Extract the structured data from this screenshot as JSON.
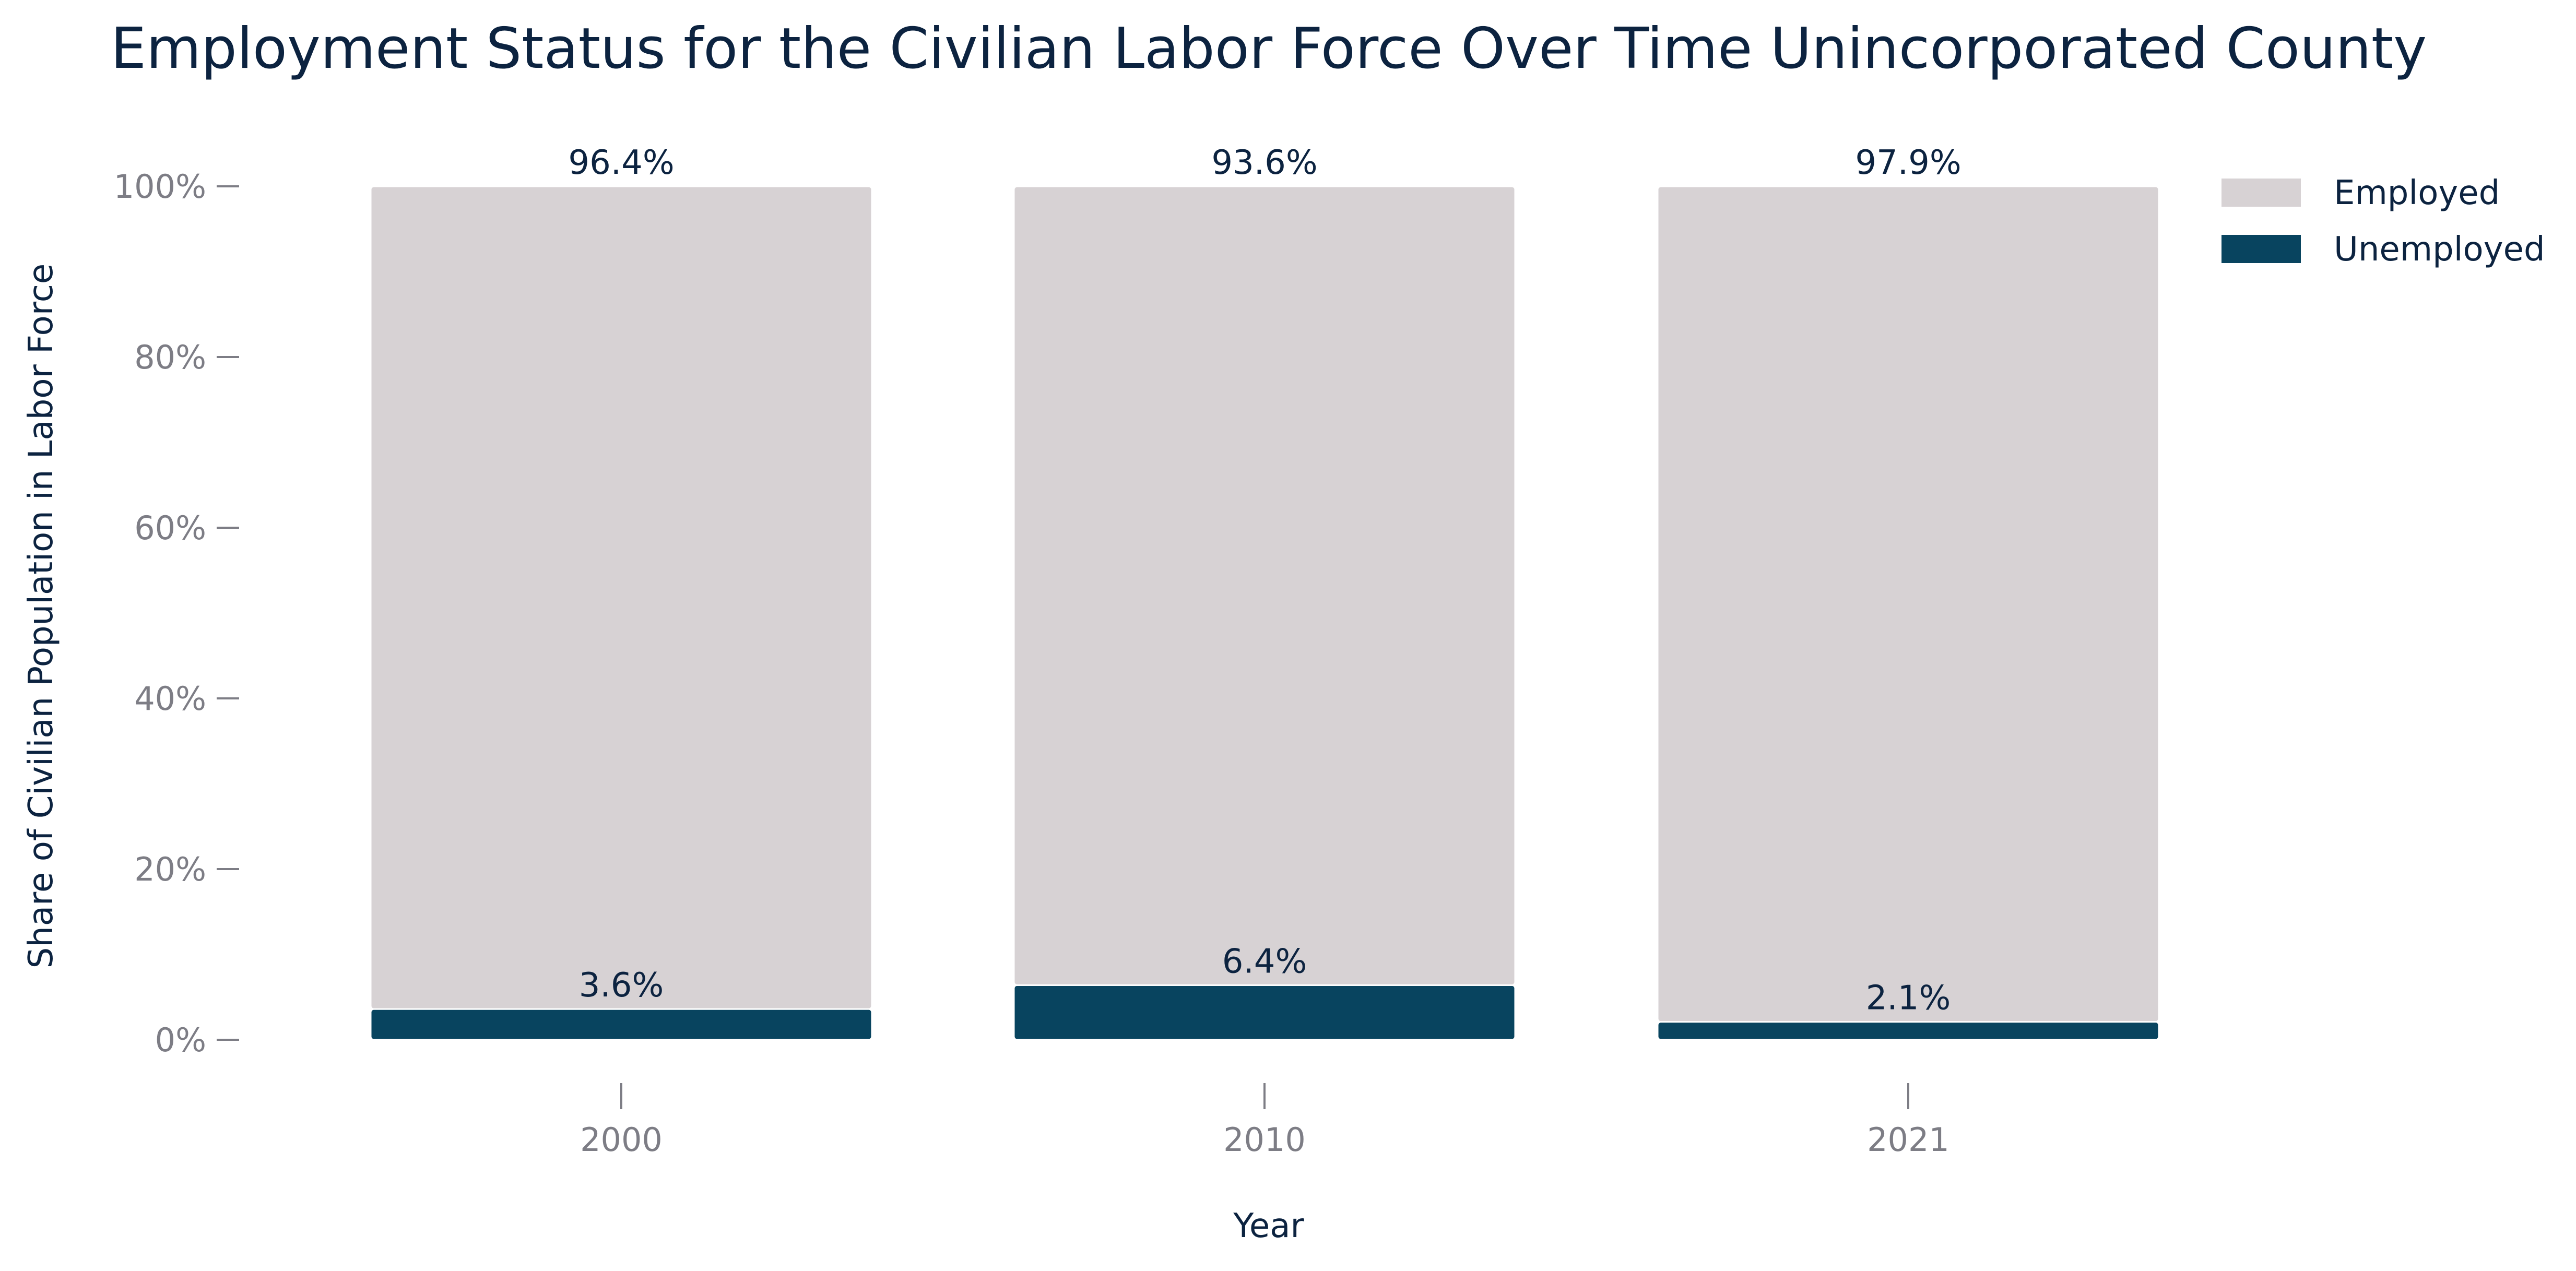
{
  "chart_data": {
    "type": "bar",
    "stacked": true,
    "title": "Employment Status for the Civilian Labor Force Over Time Unincorporated County",
    "xlabel": "Year",
    "ylabel": "Share of Civilian Population in Labor Force",
    "categories": [
      "2000",
      "2010",
      "2021"
    ],
    "ylim": [
      0,
      100
    ],
    "yticks": [
      "0%",
      "20%",
      "40%",
      "60%",
      "80%",
      "100%"
    ],
    "ytick_values": [
      0,
      20,
      40,
      60,
      80,
      100
    ],
    "series": [
      {
        "name": "Unemployed",
        "values": [
          3.6,
          6.4,
          2.1
        ],
        "labels": [
          "3.6%",
          "6.4%",
          "2.1%"
        ],
        "color": "#08445f"
      },
      {
        "name": "Employed",
        "values": [
          96.4,
          93.6,
          97.9
        ],
        "labels": [
          "96.4%",
          "93.6%",
          "97.9%"
        ],
        "color": "#d7d2d4"
      }
    ],
    "legend": {
      "position": "top-right",
      "order": [
        "Employed",
        "Unemployed"
      ]
    },
    "grid": false
  }
}
